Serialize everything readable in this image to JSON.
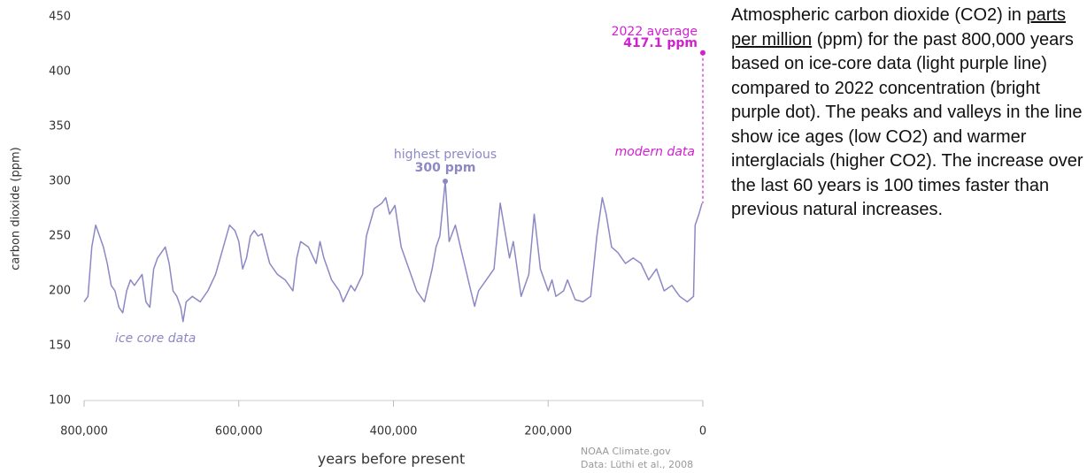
{
  "chart_data": {
    "type": "line",
    "y_label": "carbon dioxide (ppm)",
    "x_label": "years before present",
    "xlim": [
      800000,
      0
    ],
    "ylim": [
      100,
      450
    ],
    "xticks": [
      {
        "value": 800000,
        "label": "800,000"
      },
      {
        "value": 600000,
        "label": "600,000"
      },
      {
        "value": 400000,
        "label": "400,000"
      },
      {
        "value": 200000,
        "label": "200,000"
      },
      0
    ],
    "yticks": [
      100,
      150,
      200,
      250,
      300,
      350,
      400,
      450
    ],
    "series": [
      {
        "name": "ice core data",
        "color": "#8c88c4",
        "x": [
          800000,
          795000,
          790000,
          785000,
          780000,
          775000,
          770000,
          765000,
          760000,
          755000,
          750000,
          745000,
          740000,
          735000,
          730000,
          725000,
          720000,
          715000,
          710000,
          705000,
          700000,
          695000,
          690000,
          685000,
          680000,
          675000,
          672000,
          668000,
          660000,
          650000,
          640000,
          630000,
          620000,
          612000,
          605000,
          600000,
          595000,
          590000,
          585000,
          580000,
          575000,
          570000,
          560000,
          550000,
          540000,
          530000,
          525000,
          520000,
          510000,
          500000,
          495000,
          490000,
          480000,
          470000,
          465000,
          455000,
          450000,
          440000,
          435000,
          425000,
          415000,
          410000,
          405000,
          398000,
          390000,
          380000,
          370000,
          360000,
          350000,
          345000,
          340000,
          333000,
          328000,
          320000,
          310000,
          300000,
          295000,
          290000,
          280000,
          270000,
          262000,
          250000,
          245000,
          235000,
          225000,
          218000,
          210000,
          200000,
          195000,
          190000,
          180000,
          175000,
          165000,
          155000,
          145000,
          137000,
          130000,
          125000,
          118000,
          110000,
          100000,
          90000,
          80000,
          70000,
          60000,
          50000,
          40000,
          30000,
          20000,
          12000,
          10000,
          5000,
          1000
        ],
        "values": [
          190,
          195,
          240,
          260,
          250,
          240,
          225,
          205,
          200,
          185,
          180,
          200,
          210,
          205,
          210,
          215,
          190,
          185,
          220,
          230,
          235,
          240,
          225,
          200,
          195,
          185,
          172,
          190,
          195,
          190,
          200,
          215,
          240,
          260,
          255,
          245,
          220,
          230,
          250,
          255,
          250,
          252,
          225,
          215,
          210,
          200,
          230,
          245,
          240,
          225,
          245,
          230,
          210,
          200,
          190,
          205,
          200,
          215,
          250,
          275,
          280,
          285,
          270,
          278,
          240,
          220,
          200,
          190,
          220,
          240,
          250,
          300,
          245,
          260,
          230,
          200,
          186,
          200,
          210,
          220,
          280,
          230,
          245,
          195,
          215,
          270,
          220,
          200,
          210,
          195,
          200,
          210,
          192,
          190,
          195,
          250,
          285,
          270,
          240,
          235,
          225,
          230,
          225,
          210,
          220,
          200,
          205,
          195,
          190,
          195,
          260,
          270,
          280
        ]
      }
    ],
    "highlights": [
      {
        "label": "highest previous",
        "value_label": "300 ppm",
        "x": 333000,
        "value": 300,
        "color": "#8c88c4"
      },
      {
        "label": "2022 average",
        "value_label": "417.1 ppm",
        "x": 0,
        "value": 417.1,
        "color": "#d21fd2"
      }
    ],
    "region_labels": [
      "ice core data",
      "modern data"
    ],
    "source": [
      "NOAA Climate.gov",
      "Data: Lüthi et al., 2008"
    ]
  },
  "description": [
    "Atmospheric carbon dioxide (CO2) in ",
    "parts per million",
    " (ppm) for the past 800,000 years based on ice-core data (light purple line) compared to 2022 concentration (bright purple dot). The peaks and valleys in the line show ice ages (low CO2) and warmer interglacials (higher CO2). The increase over the last 60 years is 100 times faster than previous natural increases."
  ]
}
